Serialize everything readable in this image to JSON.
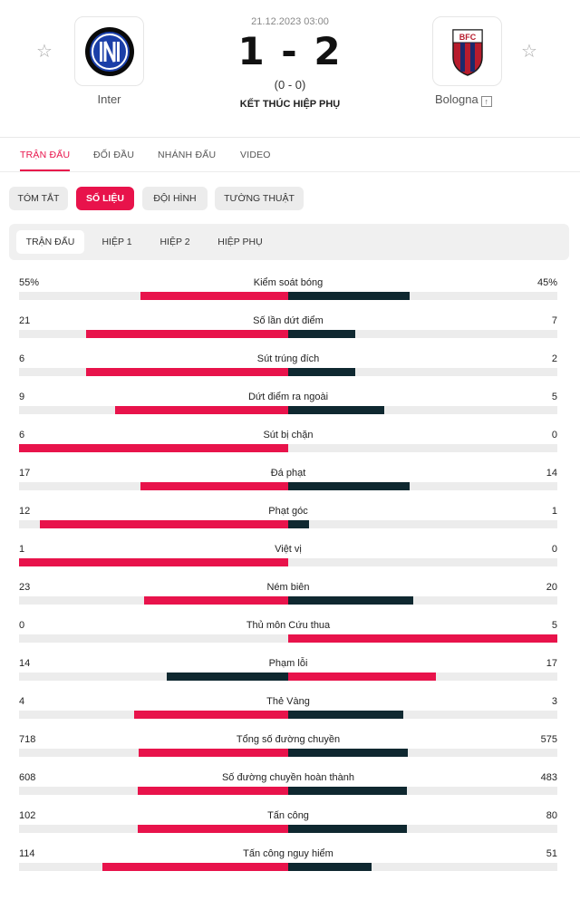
{
  "match": {
    "date": "21.12.2023 03:00",
    "score": "1 - 2",
    "halftime": "(0 - 0)",
    "status": "KẾT THÚC HIỆP PHỤ",
    "home": {
      "name": "Inter"
    },
    "away": {
      "name": "Bologna"
    }
  },
  "main_tabs": [
    "TRẬN ĐẤU",
    "ĐỐI ĐẦU",
    "NHÁNH ĐẤU",
    "VIDEO"
  ],
  "sub_tabs": [
    "TÓM TẮT",
    "SỐ LIỆU",
    "ĐỘI HÌNH",
    "TƯỜNG THUẬT"
  ],
  "period_tabs": [
    "TRẬN ĐẤU",
    "HIỆP 1",
    "HIỆP 2",
    "HIỆP PHỤ"
  ],
  "colors": {
    "accent": "#e8134b",
    "dark": "#0f2830",
    "track": "#ececec"
  },
  "stats": [
    {
      "label": "Kiểm soát bóng",
      "home": "55%",
      "away": "45%",
      "h": 55,
      "a": 45,
      "lead": "home"
    },
    {
      "label": "Số lần dứt điểm",
      "home": "21",
      "away": "7",
      "h": 21,
      "a": 7,
      "lead": "home"
    },
    {
      "label": "Sút trúng đích",
      "home": "6",
      "away": "2",
      "h": 6,
      "a": 2,
      "lead": "home"
    },
    {
      "label": "Dứt điểm ra ngoài",
      "home": "9",
      "away": "5",
      "h": 9,
      "a": 5,
      "lead": "home"
    },
    {
      "label": "Sút bị chặn",
      "home": "6",
      "away": "0",
      "h": 6,
      "a": 0,
      "lead": "home"
    },
    {
      "label": "Đá phạt",
      "home": "17",
      "away": "14",
      "h": 17,
      "a": 14,
      "lead": "home"
    },
    {
      "label": "Phạt góc",
      "home": "12",
      "away": "1",
      "h": 12,
      "a": 1,
      "lead": "home"
    },
    {
      "label": "Việt vị",
      "home": "1",
      "away": "0",
      "h": 1,
      "a": 0,
      "lead": "home"
    },
    {
      "label": "Ném biên",
      "home": "23",
      "away": "20",
      "h": 23,
      "a": 20,
      "lead": "home"
    },
    {
      "label": "Thủ môn Cứu thua",
      "home": "0",
      "away": "5",
      "h": 0,
      "a": 5,
      "lead": "away"
    },
    {
      "label": "Phạm lỗi",
      "home": "14",
      "away": "17",
      "h": 14,
      "a": 17,
      "lead": "away"
    },
    {
      "label": "Thẻ Vàng",
      "home": "4",
      "away": "3",
      "h": 4,
      "a": 3,
      "lead": "home"
    },
    {
      "label": "Tổng số đường chuyền",
      "home": "718",
      "away": "575",
      "h": 718,
      "a": 575,
      "lead": "home"
    },
    {
      "label": "Số đường chuyền hoàn thành",
      "home": "608",
      "away": "483",
      "h": 608,
      "a": 483,
      "lead": "home"
    },
    {
      "label": "Tấn công",
      "home": "102",
      "away": "80",
      "h": 102,
      "a": 80,
      "lead": "home"
    },
    {
      "label": "Tấn công nguy hiểm",
      "home": "114",
      "away": "51",
      "h": 114,
      "a": 51,
      "lead": "home"
    }
  ]
}
